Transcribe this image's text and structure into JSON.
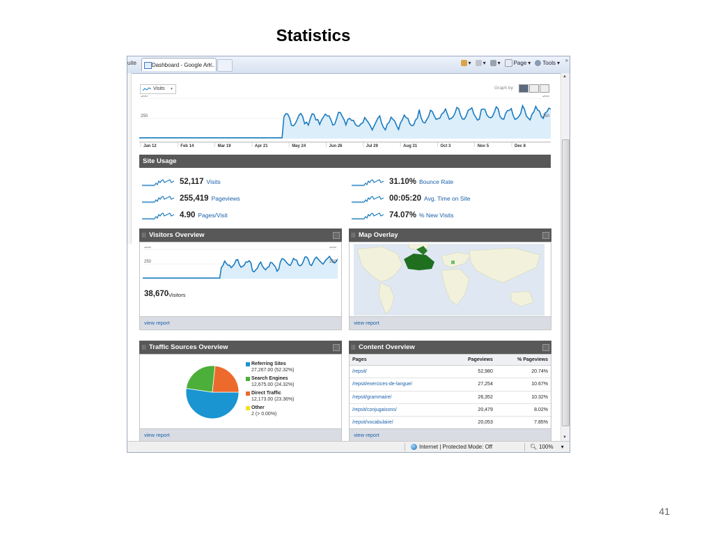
{
  "slide": {
    "title": "Statistics",
    "number": "41"
  },
  "browser": {
    "prev_tab_text": "uite",
    "tab_title": "Dashboard - Google An...",
    "tab_close": "✕",
    "commands": {
      "page": "Page",
      "tools": "Tools",
      "chevrons": "»"
    },
    "status": {
      "zone": "Internet | Protected Mode: Off",
      "zoom": "100%"
    }
  },
  "colors": {
    "accent": "#1a7bbf",
    "link": "#1a5fa8",
    "header_bar": "#585858",
    "area_fill": "#dceefa"
  },
  "main_graph": {
    "metric_dropdown": "Visits",
    "graph_by_label": "Graph by:",
    "y_ticks": [
      "500",
      "250"
    ],
    "x_ticks": [
      "Jan 12",
      "Feb 14",
      "Mar 19",
      "Apr 21",
      "May 24",
      "Jun 26",
      "Jul 29",
      "Aug 31",
      "Oct 3",
      "Nov 5",
      "Dec 8"
    ]
  },
  "site_usage": {
    "title": "Site Usage",
    "metrics": [
      {
        "value": "52,117",
        "label": "Visits"
      },
      {
        "value": "255,419",
        "label": "Pageviews"
      },
      {
        "value": "4.90",
        "label": "Pages/Visit"
      },
      {
        "value": "31.10%",
        "label": "Bounce Rate"
      },
      {
        "value": "00:05:20",
        "label": "Avg. Time on Site"
      },
      {
        "value": "74.07%",
        "label": "% New Visits"
      }
    ]
  },
  "visitors_overview": {
    "title": "Visitors Overview",
    "y_ticks": [
      "500",
      "250"
    ],
    "value": "38,670",
    "label": "Visitors",
    "link": "view report"
  },
  "map_overlay": {
    "title": "Map Overlay",
    "link": "view report"
  },
  "traffic_sources": {
    "title": "Traffic Sources Overview",
    "link": "view report",
    "legend": [
      {
        "name": "Referring Sites",
        "detail": "27,267.00 (52.32%)",
        "color": "#1a95d2"
      },
      {
        "name": "Search Engines",
        "detail": "12,675.00 (24.32%)",
        "color": "#4caf3a"
      },
      {
        "name": "Direct Traffic",
        "detail": "12,173.00 (23.36%)",
        "color": "#ec6a2c"
      },
      {
        "name": "Other",
        "detail": "2 (> 0.00%)",
        "color": "#f2e21f"
      }
    ]
  },
  "content_overview": {
    "title": "Content Overview",
    "link": "view report",
    "headers": [
      "Pages",
      "Pageviews",
      "% Pageviews"
    ],
    "rows": [
      [
        "/repsit/",
        "52,980",
        "20.74%"
      ],
      [
        "/repsit/exercices-de-langue/",
        "27,254",
        "10.67%"
      ],
      [
        "/repsit/grammaire/",
        "26,352",
        "10.32%"
      ],
      [
        "/repsit/conjugaisons/",
        "20,479",
        "8.02%"
      ],
      [
        "/repsit/vocabulaire/",
        "20,053",
        "7.85%"
      ]
    ]
  },
  "chart_data": [
    {
      "type": "pie",
      "labels": [
        "Referring Sites",
        "Search Engines",
        "Direct Traffic",
        "Other"
      ],
      "values": [
        27267,
        12675,
        12173,
        2
      ],
      "percent": [
        52.32,
        24.32,
        23.36,
        0.0
      ]
    }
  ]
}
